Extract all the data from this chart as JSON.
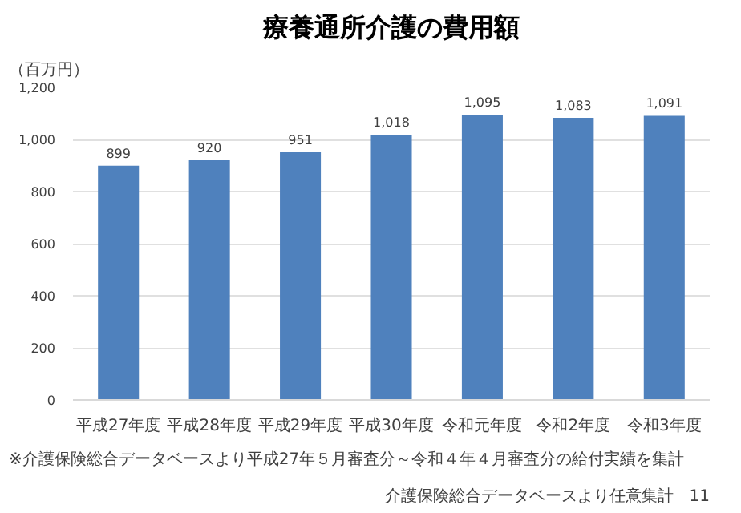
{
  "chart_data": {
    "type": "bar",
    "title": "療養通所介護の費用額",
    "ylabel": "（百万円）",
    "categories": [
      "平成27年度",
      "平成28年度",
      "平成29年度",
      "平成30年度",
      "令和元年度",
      "令和2年度",
      "令和3年度"
    ],
    "values": [
      899,
      920,
      951,
      1018,
      1095,
      1083,
      1091
    ],
    "value_labels": [
      "899",
      "920",
      "951",
      "1,018",
      "1,095",
      "1,083",
      "1,091"
    ],
    "color": "#4f81bd",
    "ylim": [
      0,
      1200
    ],
    "yticks": [
      0,
      200,
      400,
      600,
      800,
      {
        "value": 1000,
        "label": "1,000"
      },
      {
        "value": 1200,
        "label": "1,200"
      }
    ],
    "grid": "y",
    "annotations": [
      "※介護保険総合データベースより平成27年５月審査分～令和４年４月審査分の給付実績を集計",
      "介護保険総合データベースより任意集計　11"
    ]
  }
}
